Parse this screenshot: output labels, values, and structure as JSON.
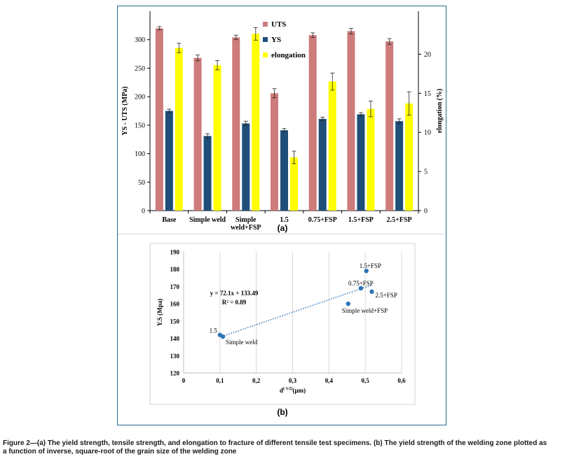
{
  "chart_data": [
    {
      "type": "bar",
      "panel_label": "(a)",
      "categories": [
        "Base",
        "Simple weld",
        "Simple weld+FSP",
        "1.5",
        "0.75+FSP",
        "1.5+FSP",
        "2.5+FSP"
      ],
      "category_lines": [
        [
          "Base"
        ],
        [
          "Simple weld"
        ],
        [
          "Simple",
          "weld+FSP"
        ],
        [
          "1.5"
        ],
        [
          "0.75+FSP"
        ],
        [
          "1.5+FSP"
        ],
        [
          "2.5+FSP"
        ]
      ],
      "series": [
        {
          "name": "UTS",
          "axis": "left",
          "color": "#cd7b7b",
          "values": [
            320,
            268,
            304,
            206,
            308,
            315,
            297
          ],
          "errors": [
            3,
            5,
            4,
            8,
            4,
            5,
            5
          ]
        },
        {
          "name": "YS",
          "axis": "left",
          "color": "#1f4e79",
          "values": [
            175,
            131,
            153,
            141,
            161,
            169,
            157
          ],
          "errors": [
            3,
            4,
            4,
            3,
            3,
            3,
            4
          ]
        },
        {
          "name": "elongation",
          "axis": "right",
          "color": "#ffff00",
          "values": [
            20.8,
            18.6,
            22.6,
            6.8,
            16.5,
            13.0,
            13.7
          ],
          "errors": [
            0.6,
            0.6,
            0.8,
            0.8,
            1.1,
            1.0,
            1.5
          ]
        }
      ],
      "ylabel": "YS - UTS (MPa)",
      "ylim": [
        0,
        350
      ],
      "yticks": [
        0,
        50,
        100,
        150,
        200,
        250,
        300
      ],
      "y2label": "elongation (%)",
      "y2lim": [
        0,
        25.5
      ],
      "y2ticks": [
        0,
        5,
        10,
        15,
        20
      ],
      "legend": "top-center"
    },
    {
      "type": "scatter",
      "panel_label": "(b)",
      "points": [
        {
          "label": "Simple weld",
          "x": 0.108,
          "y": 141
        },
        {
          "label": "1.5",
          "x": 0.1,
          "y": 142
        },
        {
          "label": "Simple weld+FSP",
          "x": 0.453,
          "y": 160
        },
        {
          "label": "0.75+FSP",
          "x": 0.488,
          "y": 169
        },
        {
          "label": "1.5+FSP",
          "x": 0.503,
          "y": 179
        },
        {
          "label": "2.5+FSP",
          "x": 0.518,
          "y": 167
        }
      ],
      "color": "#2e75b6",
      "trendline": {
        "slope": 72.1,
        "intercept": 133.49,
        "x_range": [
          0.105,
          0.52
        ],
        "style": "dotted"
      },
      "equation": "y = 72.1x + 133.49",
      "r_squared": "R² = 0.89",
      "xlabel_base": "d",
      "xlabel_sup": "(-1/2)",
      "xlabel_unit": "(μm)",
      "ylabel": "Y.S (Mpa)",
      "xlim": [
        0,
        0.6
      ],
      "ylim": [
        120,
        190
      ],
      "xticks": [
        0,
        0.1,
        0.2,
        0.3,
        0.4,
        0.5,
        0.6
      ],
      "xtick_labels": [
        "0",
        "0,1",
        "0,2",
        "0,3",
        "0,4",
        "0,5",
        "0,6"
      ],
      "yticks": [
        120,
        130,
        140,
        150,
        160,
        170,
        180,
        190
      ],
      "grid": "vertical"
    }
  ],
  "caption": {
    "line1": "Figure 2—(a) The yield strength, tensile strength, and elongation to fracture of different tensile test specimens. (b) The yield strength of the welding zone plotted as",
    "line2": "a function of inverse, square-root of the grain size of the welding zone"
  }
}
